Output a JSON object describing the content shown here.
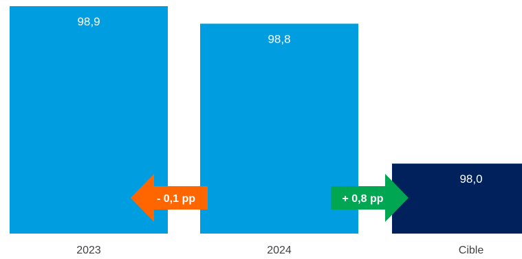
{
  "chart_data": {
    "type": "bar",
    "categories": [
      "2023",
      "2024",
      "Cible"
    ],
    "values": [
      98.9,
      98.8,
      98.0
    ],
    "value_labels": [
      "98,9",
      "98,8",
      "98,0"
    ],
    "title": "",
    "xlabel": "",
    "ylabel": "",
    "grid": false,
    "legend": "none",
    "colors": {
      "bars": [
        "#009ee0",
        "#009ee0",
        "#00215b"
      ],
      "decrease_arrow": "#ff6600",
      "increase_arrow": "#00a651",
      "value_text": "#ffffff",
      "category_text": "#404040"
    },
    "annotations": [
      {
        "label": "- 0,1 pp",
        "from": "2024",
        "to": "2023",
        "direction": "left",
        "color": "#ff6600"
      },
      {
        "label": "+ 0,8 pp",
        "from": "2024",
        "to": "Cible",
        "direction": "right",
        "color": "#00a651"
      }
    ]
  }
}
